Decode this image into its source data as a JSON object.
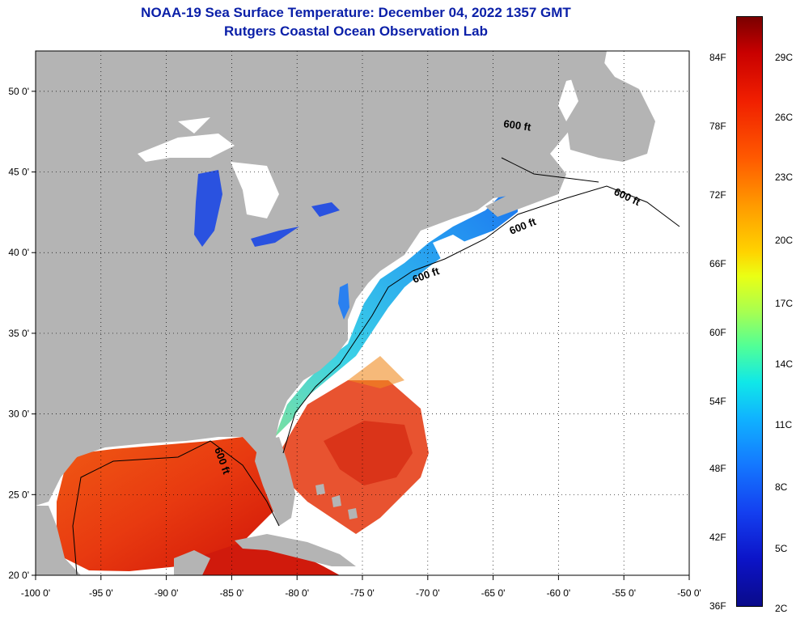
{
  "header": {
    "title": "NOAA-19 Sea Surface Temperature:  December 04, 2022 1357 GMT",
    "subtitle": "Rutgers Coastal Ocean Observation Lab"
  },
  "axes": {
    "lon_labels": [
      "-100 0'",
      "-95 0'",
      "-90 0'",
      "-85 0'",
      "-80 0'",
      "-75 0'",
      "-70 0'",
      "-65 0'",
      "-60 0'",
      "-55 0'",
      "-50 0'"
    ],
    "lat_labels": [
      "50 0'",
      "45 0'",
      "40 0'",
      "35 0'",
      "30 0'",
      "25 0'",
      "20 0'"
    ],
    "lon_range": [
      -100,
      -50
    ],
    "lat_range": [
      20,
      52.5
    ]
  },
  "contour_labels": [
    "600 ft",
    "600 ft",
    "600 ft",
    "600 ft",
    "600 ft"
  ],
  "colorbar": {
    "fahrenheit_labels": [
      "84F",
      "78F",
      "72F",
      "66F",
      "60F",
      "54F",
      "48F",
      "42F",
      "36F"
    ],
    "celsius_labels": [
      "29C",
      "26C",
      "23C",
      "20C",
      "17C",
      "14C",
      "11C",
      "8C",
      "5C",
      "2C"
    ]
  },
  "colors": {
    "land": "#b4b4b4",
    "no_data": "#ffffff",
    "title": "#0a1fa8"
  }
}
